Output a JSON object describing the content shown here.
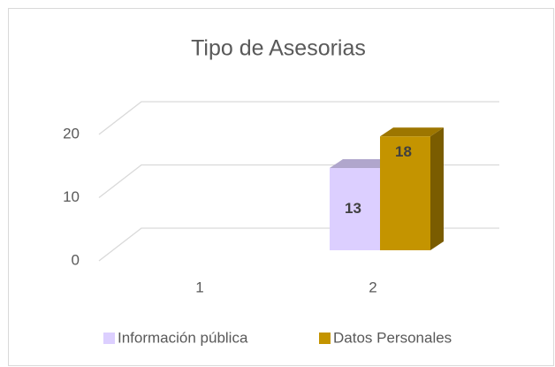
{
  "chart_data": {
    "type": "bar3d",
    "title": "Tipo de Asesorias",
    "categories": [
      "1",
      "2"
    ],
    "series": [
      {
        "name": "Información pública",
        "color": "#dccfff",
        "values": [
          null,
          13
        ]
      },
      {
        "name": "Datos Personales",
        "color": "#c49400",
        "values": [
          null,
          18
        ]
      }
    ],
    "ylim": [
      0,
      20
    ],
    "yticks": [
      0,
      10,
      20
    ],
    "grid": true,
    "legend": "bottom"
  }
}
